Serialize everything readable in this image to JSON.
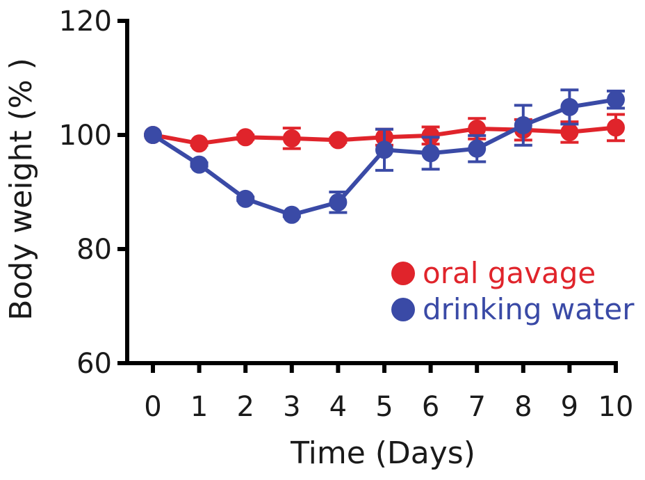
{
  "chart_data": {
    "type": "line",
    "title": "",
    "xlabel": "Time (Days)",
    "ylabel": "Body weight (% )",
    "xlim": [
      0,
      10
    ],
    "ylim": [
      60,
      120
    ],
    "x_ticks": [
      "0",
      "1",
      "2",
      "3",
      "4",
      "5",
      "6",
      "7",
      "8",
      "9",
      "10"
    ],
    "y_ticks": [
      "60",
      "80",
      "100",
      "120"
    ],
    "x": [
      0,
      1,
      2,
      3,
      4,
      5,
      6,
      7,
      8,
      9,
      10
    ],
    "series": [
      {
        "name": "oral gavage",
        "color": "#e0242b",
        "values": [
          100,
          98.5,
          99.6,
          99.4,
          99.1,
          99.6,
          99.9,
          101.1,
          100.9,
          100.5,
          101.3
        ],
        "errors": [
          0,
          0.3,
          0.4,
          1.8,
          0.4,
          1.4,
          1.5,
          1.8,
          1.8,
          1.8,
          2.3
        ]
      },
      {
        "name": "drinking water",
        "color": "#3a4aa6",
        "values": [
          100,
          94.8,
          88.8,
          86.0,
          88.2,
          97.4,
          96.8,
          97.6,
          101.7,
          104.9,
          106.2
        ],
        "errors": [
          0,
          0.3,
          0.3,
          0.3,
          1.8,
          3.6,
          2.8,
          2.3,
          3.5,
          3.0,
          1.5
        ]
      }
    ],
    "legend": {
      "position": "lower-right"
    },
    "grid": false
  }
}
